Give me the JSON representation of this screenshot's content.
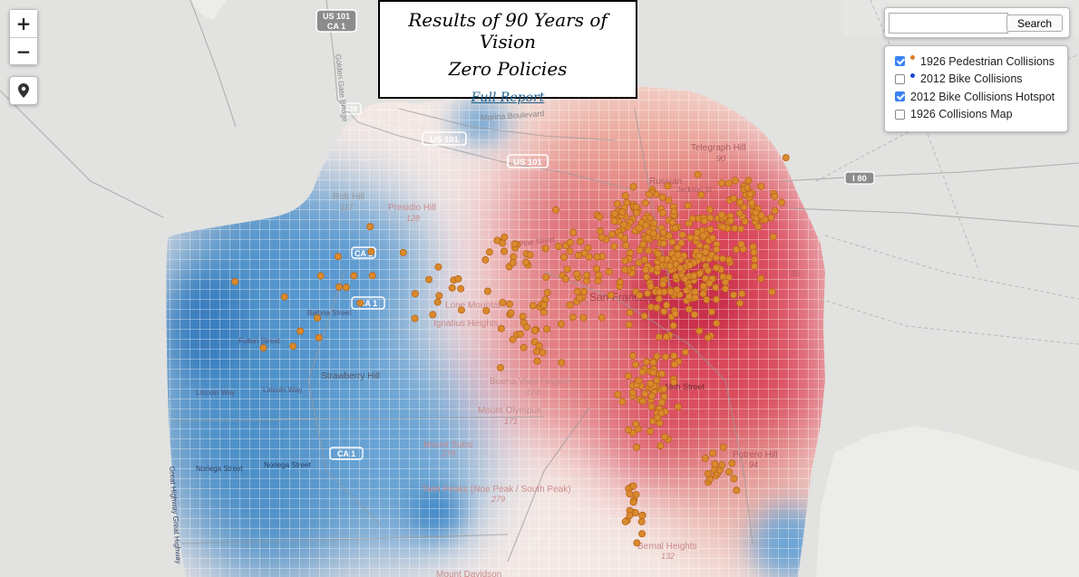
{
  "controls": {
    "zoom_in_label": "+",
    "zoom_out_label": "−",
    "locate_icon": "map-pin-icon"
  },
  "title_box": {
    "line1": "Results of 90 Years of Vision",
    "line2": "Zero Policies",
    "link_label": "Full Report"
  },
  "search": {
    "value": "",
    "placeholder": "",
    "button_label": "Search"
  },
  "layers": [
    {
      "label": "1926 Pedestrian Collisions",
      "checked": true,
      "dot_color": "#d97a2b"
    },
    {
      "label": "2012 Bike Collisions",
      "checked": false,
      "dot_color": "#2146d0"
    },
    {
      "label": "2012 Bike Collisions Hotspot",
      "checked": true
    },
    {
      "label": "1926 Collisions Map",
      "checked": false
    }
  ],
  "colors": {
    "point_fill": "#d98a2c",
    "point_stroke": "#b8641b",
    "heat_hot": "#d23a4e",
    "heat_cold": "#3e86c6",
    "land": "#f2f2f2",
    "water": "#e2e2e0"
  },
  "map_labels": {
    "us101_ca1_line1": "US 101",
    "us101_ca1_line2": "CA 1",
    "us101": "US 101",
    "i80": "I 80",
    "ca1": "CA 1",
    "shield_438": "438",
    "marina_blvd": "Marina Boulevard",
    "golden_gate_bridge": "Golden Gate Bridge",
    "rob_hill": "Rob Hill",
    "rob_hill_elev": "117",
    "presidio_hill": "Presidio Hill",
    "presidio_hill_elev": "128",
    "telegraph_hill": "Telegraph Hill",
    "telegraph_hill_elev": "90",
    "russian_hill": "Russian",
    "jackson_st": "Jackson St",
    "pine_st": "Pine Street",
    "balboa_st": "Balboa Street",
    "fulton_st": "Fulton Street",
    "lone_mountain": "Lone Mountain",
    "ignatius_heights": "Ignatius Heights",
    "strawberry_hill": "Strawberry Hill",
    "lincoln_way": "Lincoln Way",
    "buena_vista": "Buena Vista Heights",
    "buena_vista_elev": "173",
    "mount_olympus": "Mount Olympus",
    "mount_olympus_elev": "171",
    "mount_sutro": "Mount Sutro",
    "mount_sutro_elev": "278",
    "twin_peaks": "Twin Peaks (Noe Peak / South Peak)",
    "twin_peaks_elev": "279",
    "potrero_hill": "Potrero Hill",
    "potrero_hill_elev": "94",
    "bernal_heights": "Bernal Heights",
    "bernal_heights_elev": "132",
    "noriega_st1": "Noriega Street",
    "noriega_st2": "Noriega Street",
    "great_highway": "Great Highway Great Highway",
    "sixteenth_st": "16th Street",
    "mount_davidson": "Mount Davidson",
    "shield_35": "35",
    "san_francisco": "San Francisco"
  }
}
